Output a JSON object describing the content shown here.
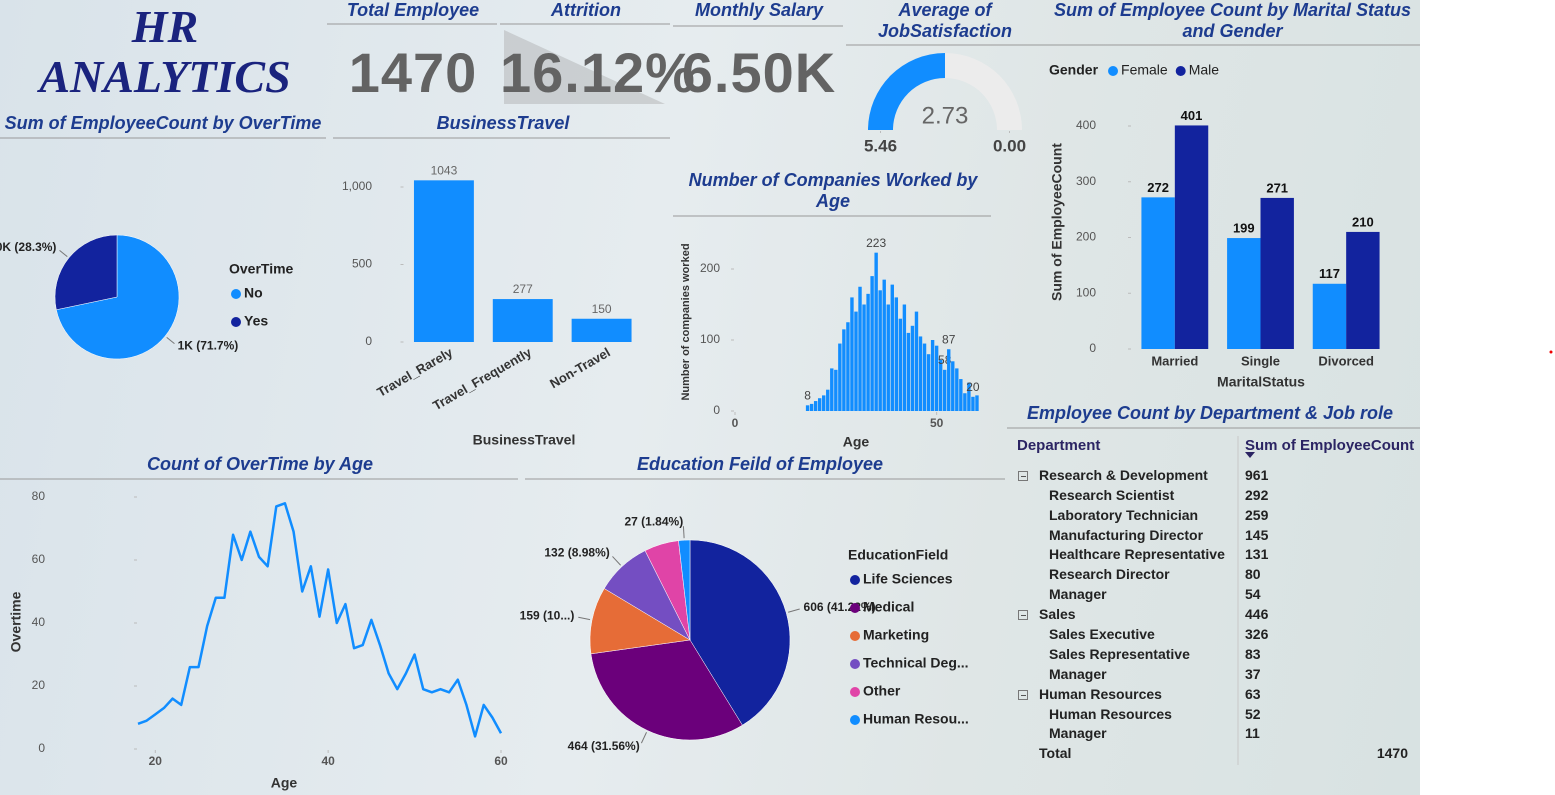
{
  "title": "HR ANALYTICS",
  "kpis": [
    {
      "label": "Total Employee",
      "value": 1470
    },
    {
      "label": "Attrition",
      "value": "16.12%"
    },
    {
      "label": "Monthly Salary",
      "value": "6.50K"
    }
  ],
  "chart_data": [
    {
      "type": "gauge",
      "title": "Average of JobSatisfaction",
      "value": 2.73,
      "ylim": [
        0,
        5.46
      ],
      "yticks": [
        {
          "value": 0,
          "label": "0.00"
        },
        5.46
      ],
      "color": "#118dff",
      "track_color": "#ececec"
    },
    {
      "type": "pie",
      "title": "Sum of EmployeeCount by OverTime",
      "legend_title": "OverTime",
      "categories": [
        "No",
        "Yes"
      ],
      "values": [
        1054,
        416
      ],
      "value_labels": [
        "1K (71.7%)",
        "0K (28.3%)"
      ],
      "colors": [
        "#118dff",
        "#12239e"
      ]
    },
    {
      "type": "bar",
      "title": "BusinessTravel",
      "xlabel": "BusinessTravel",
      "categories": [
        "Travel_Rarely",
        "Travel_Frequently",
        "Non-Travel"
      ],
      "values": [
        1043,
        277,
        150
      ],
      "data_labels": true,
      "color": "#118dff",
      "ylim": [
        0,
        1100
      ],
      "yticks": [
        0,
        500,
        {
          "value": 1000,
          "label": "1,000"
        }
      ]
    },
    {
      "type": "bar",
      "title": "Number of Companies Worked by Age",
      "xlabel": "Age",
      "ylabel": "Number of companies worked",
      "x": [
        18,
        19,
        20,
        21,
        22,
        23,
        24,
        25,
        26,
        27,
        28,
        29,
        30,
        31,
        32,
        33,
        34,
        35,
        36,
        37,
        38,
        39,
        40,
        41,
        42,
        43,
        44,
        45,
        46,
        47,
        48,
        49,
        50,
        51,
        52,
        53,
        54,
        55,
        56,
        57,
        58,
        59,
        60
      ],
      "values": [
        8,
        10,
        14,
        18,
        22,
        30,
        60,
        58,
        95,
        115,
        125,
        160,
        140,
        175,
        150,
        165,
        190,
        223,
        170,
        185,
        150,
        178,
        160,
        130,
        150,
        110,
        120,
        140,
        105,
        95,
        80,
        100,
        92,
        72,
        58,
        87,
        70,
        60,
        45,
        25,
        40,
        20,
        22
      ],
      "value_labels": [
        "8",
        null,
        null,
        null,
        null,
        null,
        null,
        null,
        null,
        null,
        null,
        null,
        null,
        null,
        null,
        null,
        null,
        "223",
        null,
        null,
        null,
        null,
        null,
        null,
        null,
        null,
        null,
        null,
        null,
        null,
        null,
        null,
        null,
        null,
        "58",
        "87",
        null,
        null,
        null,
        null,
        null,
        "20",
        null
      ],
      "color": "#118dff",
      "xlim": [
        0,
        61
      ],
      "xticks": [
        0,
        50
      ],
      "ylim": [
        0,
        250
      ],
      "yticks": [
        0,
        100,
        200
      ]
    },
    {
      "type": "bar",
      "title": "Sum of Employee Count by Marital Status and Gender",
      "xlabel": "MaritalStatus",
      "ylabel": "Sum of EmployeeCount",
      "legend_title": "Gender",
      "categories": [
        "Married",
        "Single",
        "Divorced"
      ],
      "series": [
        {
          "name": "Female",
          "color": "#118dff",
          "values": [
            272,
            199,
            117
          ]
        },
        {
          "name": "Male",
          "color": "#12239e",
          "values": [
            401,
            271,
            210
          ]
        }
      ],
      "data_labels": true,
      "ylim": [
        0,
        420
      ],
      "yticks": [
        0,
        100,
        200,
        300,
        400
      ]
    },
    {
      "type": "line",
      "title": "Count of OverTime by Age",
      "xlabel": "Age",
      "ylabel": "Overtime",
      "x": [
        18,
        19,
        20,
        21,
        22,
        23,
        24,
        25,
        26,
        27,
        28,
        29,
        30,
        31,
        32,
        33,
        34,
        35,
        36,
        37,
        38,
        39,
        40,
        41,
        42,
        43,
        44,
        45,
        46,
        47,
        48,
        49,
        50,
        51,
        52,
        53,
        54,
        55,
        56,
        57,
        58,
        59,
        60
      ],
      "values": [
        8,
        9,
        11,
        13,
        16,
        14,
        26,
        26,
        39,
        48,
        48,
        68,
        60,
        69,
        61,
        58,
        77,
        78,
        69,
        50,
        58,
        42,
        57,
        40,
        46,
        32,
        33,
        41,
        33,
        24,
        19,
        24,
        30,
        19,
        18,
        19,
        18,
        22,
        14,
        4,
        14,
        10,
        5
      ],
      "color": "#118dff",
      "xlim": [
        18,
        60
      ],
      "xticks": [
        20,
        40,
        60
      ],
      "ylim": [
        0,
        80
      ],
      "yticks": [
        0,
        20,
        40,
        60,
        80
      ]
    },
    {
      "type": "pie",
      "title": "Education Feild of Employee",
      "legend_title": "EducationField",
      "categories": [
        "Life Sciences",
        "Medical",
        "Marketing",
        "Technical Deg...",
        "Other",
        "Human Resou..."
      ],
      "values": [
        606,
        464,
        159,
        132,
        82,
        27
      ],
      "value_labels": [
        "606 (41.22%)",
        "464 (31.56%)",
        "159 (10...)",
        "132 (8.98%)",
        null,
        "27 (1.84%)"
      ],
      "colors": [
        "#12239e",
        "#6b007b",
        "#e66c37",
        "#744ec2",
        "#e044a7",
        "#118dff"
      ]
    }
  ],
  "table": {
    "title": "Employee Count by Department & Job role",
    "columns": [
      "Department",
      "Sum of EmployeeCount"
    ],
    "groups": [
      {
        "name": "Research & Development",
        "value": 961,
        "rows": [
          {
            "name": "Research Scientist",
            "value": 292
          },
          {
            "name": "Laboratory Technician",
            "value": 259
          },
          {
            "name": "Manufacturing Director",
            "value": 145
          },
          {
            "name": "Healthcare Representative",
            "value": 131
          },
          {
            "name": "Research Director",
            "value": 80
          },
          {
            "name": "Manager",
            "value": 54
          }
        ]
      },
      {
        "name": "Sales",
        "value": 446,
        "rows": [
          {
            "name": "Sales Executive",
            "value": 326
          },
          {
            "name": "Sales Representative",
            "value": 83
          },
          {
            "name": "Manager",
            "value": 37
          }
        ]
      },
      {
        "name": "Human Resources",
        "value": 63,
        "rows": [
          {
            "name": "Human Resources",
            "value": 52
          },
          {
            "name": "Manager",
            "value": 11
          }
        ]
      }
    ],
    "total": {
      "label": "Total",
      "value": 1470
    }
  }
}
